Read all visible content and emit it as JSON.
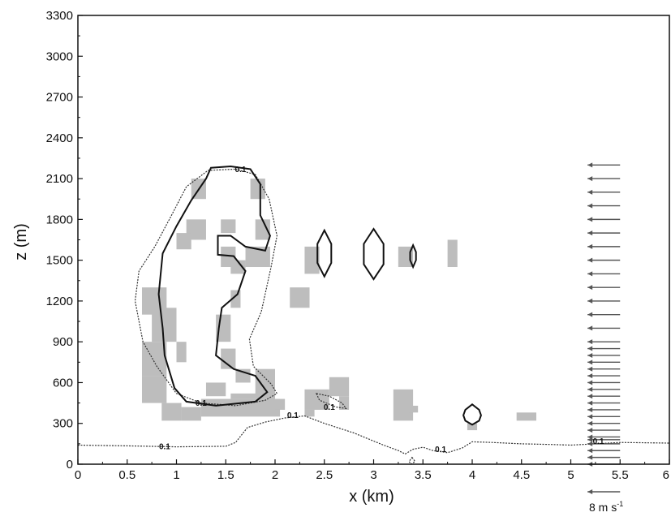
{
  "chart_data": {
    "type": "contour",
    "xlabel": "x (km)",
    "ylabel": "z (m)",
    "xlim": [
      0,
      6
    ],
    "ylim": [
      0,
      3300
    ],
    "x_ticks": [
      0,
      0.5,
      1,
      1.5,
      2,
      2.5,
      3,
      3.5,
      4,
      4.5,
      5,
      5.5,
      6
    ],
    "x_tick_labels": [
      "0",
      "0.5",
      "1",
      "1.5",
      "2",
      "2.5",
      "3",
      "3.5",
      "4",
      "4.5",
      "5",
      "5.5",
      "6"
    ],
    "y_ticks": [
      0,
      300,
      600,
      900,
      1200,
      1500,
      1800,
      2100,
      2400,
      2700,
      3000,
      3300
    ],
    "y_tick_labels": [
      "0",
      "300",
      "600",
      "900",
      "1200",
      "1500",
      "1800",
      "2100",
      "2400",
      "2700",
      "3000",
      "3300"
    ],
    "contour_label": "0.1",
    "dashed_contours": [
      {
        "name": "cloud-outline",
        "points": [
          [
            1.6,
            2170
          ],
          [
            1.8,
            2130
          ],
          [
            1.94,
            1950
          ],
          [
            2.02,
            1680
          ],
          [
            1.96,
            1450
          ],
          [
            1.86,
            1120
          ],
          [
            1.74,
            920
          ],
          [
            1.78,
            720
          ],
          [
            1.96,
            590
          ],
          [
            2.02,
            520
          ],
          [
            1.9,
            470
          ],
          [
            1.6,
            430
          ],
          [
            1.25,
            450
          ],
          [
            1.0,
            520
          ],
          [
            0.8,
            720
          ],
          [
            0.66,
            900
          ],
          [
            0.58,
            1200
          ],
          [
            0.62,
            1420
          ],
          [
            0.78,
            1600
          ],
          [
            0.95,
            1830
          ],
          [
            1.1,
            2040
          ],
          [
            1.32,
            2160
          ],
          [
            1.6,
            2170
          ]
        ],
        "closed": true
      },
      {
        "name": "surface-layer",
        "points": [
          [
            0,
            140
          ],
          [
            0.5,
            135
          ],
          [
            1.0,
            128
          ],
          [
            1.5,
            132
          ],
          [
            1.6,
            160
          ],
          [
            1.72,
            270
          ],
          [
            1.9,
            310
          ],
          [
            2.1,
            340
          ],
          [
            2.3,
            355
          ],
          [
            2.5,
            300
          ],
          [
            2.8,
            230
          ],
          [
            3.1,
            140
          ],
          [
            3.25,
            100
          ],
          [
            3.32,
            75
          ],
          [
            3.4,
            110
          ],
          [
            3.5,
            125
          ],
          [
            3.6,
            100
          ],
          [
            3.75,
            85
          ],
          [
            3.9,
            120
          ],
          [
            4.0,
            165
          ],
          [
            4.2,
            160
          ],
          [
            4.5,
            150
          ],
          [
            4.8,
            145
          ],
          [
            5.0,
            140
          ],
          [
            5.5,
            160
          ],
          [
            6.0,
            155
          ]
        ],
        "closed": false
      },
      {
        "name": "small-loop",
        "points": [
          [
            2.42,
            520
          ],
          [
            2.55,
            500
          ],
          [
            2.68,
            450
          ],
          [
            2.72,
            410
          ],
          [
            2.62,
            420
          ],
          [
            2.45,
            470
          ],
          [
            2.42,
            520
          ]
        ],
        "closed": true
      },
      {
        "name": "tiny-loop",
        "points": [
          [
            3.39,
            50
          ],
          [
            3.42,
            20
          ],
          [
            3.38,
            0
          ],
          [
            3.36,
            20
          ],
          [
            3.39,
            50
          ]
        ],
        "closed": true
      }
    ],
    "solid_contours": [
      {
        "name": "inner-cloud",
        "points": [
          [
            1.35,
            2180
          ],
          [
            1.55,
            2190
          ],
          [
            1.75,
            2170
          ],
          [
            1.85,
            2060
          ],
          [
            1.85,
            1830
          ],
          [
            1.95,
            1680
          ],
          [
            1.9,
            1570
          ],
          [
            1.7,
            1600
          ],
          [
            1.55,
            1680
          ],
          [
            1.42,
            1680
          ],
          [
            1.42,
            1540
          ],
          [
            1.58,
            1530
          ],
          [
            1.7,
            1420
          ],
          [
            1.62,
            1250
          ],
          [
            1.46,
            1150
          ],
          [
            1.43,
            1000
          ],
          [
            1.4,
            800
          ],
          [
            1.58,
            700
          ],
          [
            1.8,
            650
          ],
          [
            1.92,
            530
          ],
          [
            1.8,
            460
          ],
          [
            1.4,
            430
          ],
          [
            1.1,
            460
          ],
          [
            0.98,
            560
          ],
          [
            0.88,
            800
          ],
          [
            0.86,
            1000
          ],
          [
            0.82,
            1250
          ],
          [
            0.86,
            1550
          ],
          [
            1.0,
            1750
          ],
          [
            1.15,
            1940
          ],
          [
            1.3,
            2100
          ],
          [
            1.35,
            2180
          ]
        ],
        "closed": true
      },
      {
        "name": "diamond-2.5",
        "points": [
          [
            2.5,
            1720
          ],
          [
            2.57,
            1620
          ],
          [
            2.57,
            1480
          ],
          [
            2.5,
            1380
          ],
          [
            2.43,
            1480
          ],
          [
            2.43,
            1620
          ],
          [
            2.5,
            1720
          ]
        ],
        "closed": true
      },
      {
        "name": "diamond-3.0",
        "points": [
          [
            3.0,
            1730
          ],
          [
            3.1,
            1620
          ],
          [
            3.1,
            1470
          ],
          [
            3.0,
            1360
          ],
          [
            2.9,
            1470
          ],
          [
            2.9,
            1620
          ],
          [
            3.0,
            1730
          ]
        ],
        "closed": true
      },
      {
        "name": "diamond-3.4",
        "points": [
          [
            3.4,
            1610
          ],
          [
            3.43,
            1560
          ],
          [
            3.43,
            1500
          ],
          [
            3.4,
            1450
          ],
          [
            3.37,
            1500
          ],
          [
            3.37,
            1560
          ],
          [
            3.4,
            1610
          ]
        ],
        "closed": true
      },
      {
        "name": "circle-4.0",
        "points": [
          [
            4.0,
            440
          ],
          [
            4.07,
            400
          ],
          [
            4.09,
            360
          ],
          [
            4.07,
            320
          ],
          [
            4.0,
            290
          ],
          [
            3.93,
            320
          ],
          [
            3.91,
            360
          ],
          [
            3.93,
            400
          ],
          [
            4.0,
            440
          ]
        ],
        "closed": true
      }
    ],
    "contour_label_positions": [
      [
        1.65,
        2170
      ],
      [
        1.25,
        450
      ],
      [
        0.88,
        130
      ],
      [
        2.18,
        360
      ],
      [
        2.55,
        420
      ],
      [
        3.68,
        110
      ],
      [
        5.28,
        170
      ]
    ],
    "shaded_cells": [
      [
        1.15,
        1950,
        1.3,
        2100
      ],
      [
        1.75,
        1950,
        1.9,
        2100
      ],
      [
        1.1,
        1650,
        1.3,
        1800
      ],
      [
        1.45,
        1700,
        1.6,
        1800
      ],
      [
        1.8,
        1650,
        1.95,
        1800
      ],
      [
        1.0,
        1580,
        1.15,
        1700
      ],
      [
        1.45,
        1450,
        1.6,
        1600
      ],
      [
        1.7,
        1450,
        1.95,
        1600
      ],
      [
        1.55,
        1400,
        1.7,
        1500
      ],
      [
        0.65,
        1100,
        0.9,
        1300
      ],
      [
        1.55,
        1150,
        1.65,
        1280
      ],
      [
        2.15,
        1150,
        2.35,
        1300
      ],
      [
        2.3,
        1400,
        2.45,
        1600
      ],
      [
        3.25,
        1450,
        3.4,
        1600
      ],
      [
        3.75,
        1450,
        3.85,
        1650
      ],
      [
        0.75,
        900,
        1.0,
        1150
      ],
      [
        0.65,
        650,
        0.9,
        900
      ],
      [
        1.0,
        750,
        1.1,
        900
      ],
      [
        1.4,
        900,
        1.55,
        1100
      ],
      [
        1.45,
        700,
        1.6,
        850
      ],
      [
        0.65,
        450,
        0.9,
        650
      ],
      [
        1.6,
        600,
        1.75,
        700
      ],
      [
        1.8,
        500,
        2.0,
        700
      ],
      [
        1.3,
        500,
        1.5,
        600
      ],
      [
        0.85,
        320,
        1.05,
        450
      ],
      [
        1.05,
        320,
        1.25,
        420
      ],
      [
        1.25,
        350,
        2.05,
        480
      ],
      [
        1.55,
        480,
        2.0,
        520
      ],
      [
        2.0,
        400,
        2.1,
        480
      ],
      [
        2.3,
        350,
        2.4,
        400
      ],
      [
        2.3,
        400,
        2.55,
        550
      ],
      [
        2.55,
        500,
        2.75,
        640
      ],
      [
        2.65,
        400,
        2.75,
        500
      ],
      [
        3.2,
        320,
        3.4,
        550
      ],
      [
        3.35,
        380,
        3.45,
        430
      ],
      [
        3.95,
        250,
        4.05,
        300
      ],
      [
        4.45,
        320,
        4.65,
        380
      ]
    ],
    "wind_vectors": {
      "x_tip_km": 5.17,
      "u_m_per_s": -8,
      "heights_m": [
        0,
        50,
        100,
        150,
        180,
        200,
        250,
        300,
        350,
        400,
        450,
        500,
        550,
        600,
        650,
        700,
        750,
        800,
        850,
        900,
        1000,
        1100,
        1200,
        1300,
        1400,
        1500,
        1600,
        1700,
        1800,
        1900,
        2000,
        2100,
        2200
      ]
    },
    "wind_scale": {
      "label": "8 m s",
      "exponent": "-1",
      "u_m_per_s": 8
    }
  }
}
